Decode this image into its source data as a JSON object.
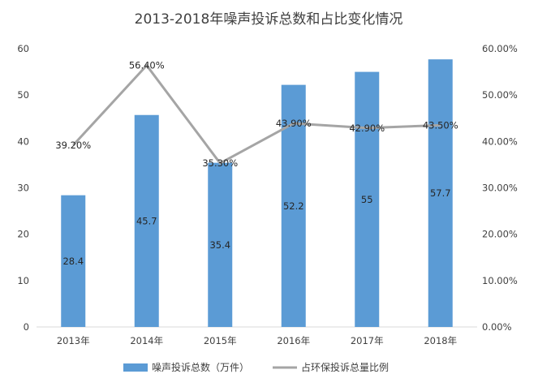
{
  "chart_data": {
    "type": "bar+line",
    "title": "2013-2018年噪声投诉总数和占比变化情况",
    "categories": [
      "2013年",
      "2014年",
      "2015年",
      "2016年",
      "2017年",
      "2018年"
    ],
    "series": [
      {
        "name": "噪声投诉总数（万件）",
        "kind": "bar",
        "axis": "left",
        "values": [
          28.4,
          45.7,
          35.4,
          52.2,
          55,
          57.7
        ],
        "labels": [
          "28.4",
          "45.7",
          "35.4",
          "52.2",
          "55",
          "57.7"
        ],
        "color": "#5b9bd5"
      },
      {
        "name": "占环保投诉总量比例",
        "kind": "line",
        "axis": "right",
        "values": [
          39.2,
          56.4,
          35.3,
          43.9,
          42.9,
          43.5
        ],
        "labels": [
          "39.20%",
          "56.40%",
          "35.30%",
          "43.90%",
          "42.90%",
          "43.50%"
        ],
        "color": "#a5a5a5"
      }
    ],
    "y_left": {
      "min": 0,
      "max": 60,
      "ticks": [
        "0",
        "10",
        "20",
        "30",
        "40",
        "50",
        "60"
      ]
    },
    "y_right": {
      "min": 0,
      "max": 60,
      "ticks": [
        "0.00%",
        "10.00%",
        "20.00%",
        "30.00%",
        "40.00%",
        "50.00%",
        "60.00%"
      ]
    },
    "grid": false,
    "legend_position": "bottom"
  }
}
